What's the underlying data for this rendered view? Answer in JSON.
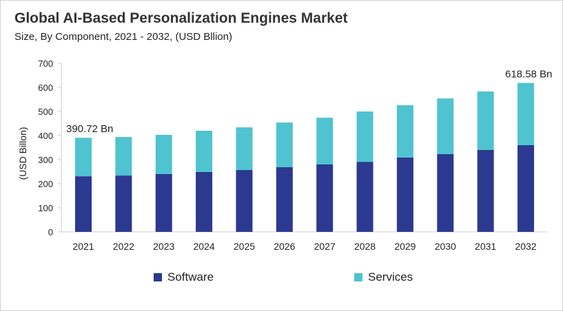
{
  "chart_data": {
    "type": "bar",
    "stacked": true,
    "title": "Global AI-Based Personalization Engines Market",
    "subtitle": "Size, By Component, 2021 - 2032, (USD Bllion)",
    "xlabel": "",
    "ylabel": "(USD Billon)",
    "ylim": [
      0,
      700
    ],
    "yticks": [
      0,
      100,
      200,
      300,
      400,
      500,
      600,
      700
    ],
    "grid": false,
    "legend": "bottom",
    "categories": [
      "2021",
      "2022",
      "2023",
      "2024",
      "2025",
      "2026",
      "2027",
      "2028",
      "2029",
      "2030",
      "2031",
      "2032"
    ],
    "series": [
      {
        "name": "Software",
        "color": "#2b3990",
        "values": [
          231,
          234,
          240,
          249,
          257,
          269,
          280,
          291,
          309,
          323,
          340,
          360
        ]
      },
      {
        "name": "Services",
        "color": "#4fc3cf",
        "values": [
          159.72,
          160,
          163,
          171,
          177,
          185,
          194,
          209,
          217,
          231,
          243,
          258.58
        ]
      }
    ],
    "annotations": [
      {
        "category": "2021",
        "text": "390.72 Bn"
      },
      {
        "category": "2032",
        "text": "618.58 Bn"
      }
    ]
  }
}
